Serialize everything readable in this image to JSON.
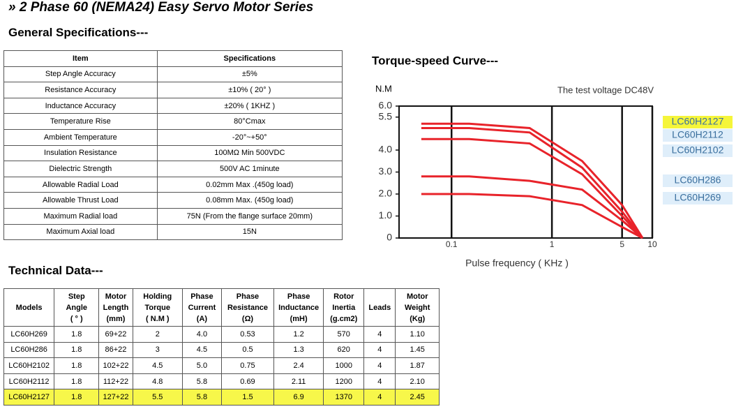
{
  "title": "» 2 Phase 60 (NEMA24) Easy Servo Motor Series",
  "general_specifications": {
    "heading": "General Specifications---",
    "header": [
      "Item",
      "Specifications"
    ],
    "rows": [
      [
        "Step Angle Accuracy",
        "±5%"
      ],
      [
        "Resistance Accuracy",
        "±10% ( 20° )"
      ],
      [
        "Inductance Accuracy",
        "±20% ( 1KHZ )"
      ],
      [
        "Temperature Rise",
        "80°Cmax"
      ],
      [
        "Ambient Temperature",
        "-20°~+50°"
      ],
      [
        "Insulation  Resistance",
        "100MΩ Min 500VDC"
      ],
      [
        "Dielectric Strength",
        "500V AC 1minute"
      ],
      [
        "Allowable Radial Load",
        "0.02mm Max .(450g load)"
      ],
      [
        "Allowable Thrust Load",
        "0.08mm Max. (450g load)"
      ],
      [
        "Maximum Radial load",
        "75N (From the flange surface 20mm)"
      ],
      [
        "Maximum Axial load",
        "15N"
      ]
    ]
  },
  "technical_data": {
    "heading": "Technical Data---",
    "header": [
      [
        "Models"
      ],
      [
        "Step",
        "Angle",
        "( ° )"
      ],
      [
        "Motor",
        "Length",
        "(mm)"
      ],
      [
        "Holding",
        "Torque",
        "( N.M )"
      ],
      [
        "Phase",
        "Current",
        "(A)"
      ],
      [
        "Phase",
        "Resistance",
        "(Ω)"
      ],
      [
        "Phase",
        "Inductance",
        "(mH)"
      ],
      [
        "Rotor",
        "Inertia",
        "(g.cm2)"
      ],
      [
        "Leads"
      ],
      [
        "Motor",
        "Weight",
        "(Kg)"
      ]
    ],
    "rows": [
      [
        "LC60H269",
        "1.8",
        "69+22",
        "2",
        "4.0",
        "0.53",
        "1.2",
        "570",
        "4",
        "1.10"
      ],
      [
        "LC60H286",
        "1.8",
        "86+22",
        "3",
        "4.5",
        "0.5",
        "1.3",
        "620",
        "4",
        "1.45"
      ],
      [
        "LC60H2102",
        "1.8",
        "102+22",
        "4.5",
        "5.0",
        "0.75",
        "2.4",
        "1000",
        "4",
        "1.87"
      ],
      [
        "LC60H2112",
        "1.8",
        "112+22",
        "4.8",
        "5.8",
        "0.69",
        "2.11",
        "1200",
        "4",
        "2.10"
      ],
      [
        "LC60H2127",
        "1.8",
        "127+22",
        "5.5",
        "5.8",
        "1.5",
        "6.9",
        "1370",
        "4",
        "2.45"
      ]
    ]
  },
  "chart_data": {
    "type": "line",
    "title": "Torque-speed Curve---",
    "y_label": "N.M",
    "x_label": "Pulse frequency ( KHz )",
    "annotation": "The test voltage DC48V",
    "x_scale": "log",
    "xlim": [
      0.03,
      10
    ],
    "xticks": [
      0.1,
      1,
      5,
      10
    ],
    "ylim": [
      0,
      6
    ],
    "yticks": [
      {
        "value": 6,
        "label": "6.0"
      },
      5.5,
      {
        "value": 4,
        "label": "4.0"
      },
      {
        "value": 3,
        "label": "3.0"
      },
      {
        "value": 2,
        "label": "2.0"
      },
      {
        "value": 1,
        "label": "1.0"
      },
      0
    ],
    "grid": true,
    "x": [
      0.05,
      0.15,
      0.6,
      2,
      5,
      8
    ],
    "series": [
      {
        "name": "LC60H2127",
        "color": "#e8232a",
        "values": [
          5.2,
          5.2,
          5.0,
          3.5,
          1.5,
          0
        ]
      },
      {
        "name": "LC60H2112",
        "color": "#e8232a",
        "values": [
          5.0,
          5.0,
          4.8,
          3.2,
          1.2,
          0
        ]
      },
      {
        "name": "LC60H2102",
        "color": "#e8232a",
        "values": [
          4.5,
          4.5,
          4.3,
          2.9,
          1.0,
          0
        ]
      },
      {
        "name": "LC60H286",
        "color": "#e8232a",
        "values": [
          2.8,
          2.8,
          2.6,
          2.2,
          0.8,
          0
        ]
      },
      {
        "name": "LC60H269",
        "color": "#e8232a",
        "values": [
          2.0,
          2.0,
          1.9,
          1.5,
          0.5,
          0
        ]
      }
    ]
  }
}
